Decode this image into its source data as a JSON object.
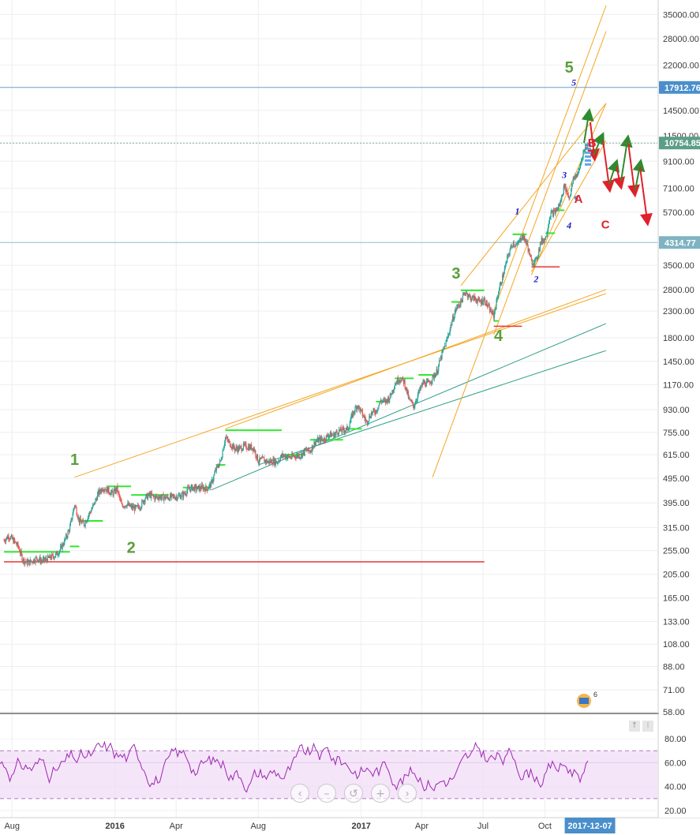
{
  "chart_data": {
    "type": "line",
    "panes": [
      {
        "name": "price",
        "scale": "log",
        "ylim": [
          58,
          38000
        ],
        "y_ticks": [
          "35000.00",
          "28000.00",
          "22000.00",
          "17912.76",
          "14500.00",
          "11500.00",
          "10754.85",
          "9100.00",
          "7100.00",
          "5700.00",
          "4314.77",
          "3500.00",
          "2800.00",
          "2300.00",
          "1800.00",
          "1450.00",
          "1170.00",
          "930.00",
          "755.00",
          "615.00",
          "495.00",
          "395.00",
          "315.00",
          "255.00",
          "205.00",
          "165.00",
          "133.00",
          "108.00",
          "88.00",
          "71.00",
          "58.00"
        ],
        "price_tags": [
          {
            "label": "17912.76",
            "value": 17912.76,
            "color": "#4a8fcb"
          },
          {
            "label": "10754.85",
            "value": 10754.85,
            "color": "#5d9e88"
          },
          {
            "label": "4314.77",
            "value": 4314.77,
            "color": "#7fb3c2"
          }
        ],
        "series": [
          {
            "values": [
              [
                "2015-07-20",
                280
              ],
              [
                "2015-07-27",
                292
              ],
              [
                "2015-08-03",
                280
              ],
              [
                "2015-08-10",
                265
              ],
              [
                "2015-08-17",
                235
              ],
              [
                "2015-08-24",
                228
              ],
              [
                "2015-08-31",
                232
              ],
              [
                "2015-09-07",
                238
              ],
              [
                "2015-09-14",
                232
              ],
              [
                "2015-09-21",
                235
              ],
              [
                "2015-09-28",
                240
              ],
              [
                "2015-10-05",
                245
              ],
              [
                "2015-10-12",
                258
              ],
              [
                "2015-10-19",
                282
              ],
              [
                "2015-10-26",
                315
              ],
              [
                "2015-11-02",
                390
              ],
              [
                "2015-11-09",
                335
              ],
              [
                "2015-11-16",
                325
              ],
              [
                "2015-11-23",
                355
              ],
              [
                "2015-11-30",
                385
              ],
              [
                "2015-12-07",
                430
              ],
              [
                "2015-12-14",
                455
              ],
              [
                "2015-12-21",
                445
              ],
              [
                "2015-12-28",
                430
              ],
              [
                "2016-01-04",
                450
              ],
              [
                "2016-01-11",
                385
              ],
              [
                "2016-01-18",
                390
              ],
              [
                "2016-01-25",
                380
              ],
              [
                "2016-02-01",
                375
              ],
              [
                "2016-02-08",
                385
              ],
              [
                "2016-02-15",
                415
              ],
              [
                "2016-02-22",
                425
              ],
              [
                "2016-02-29",
                415
              ],
              [
                "2016-03-07",
                418
              ],
              [
                "2016-03-14",
                415
              ],
              [
                "2016-03-21",
                415
              ],
              [
                "2016-03-28",
                418
              ],
              [
                "2016-04-04",
                420
              ],
              [
                "2016-04-11",
                425
              ],
              [
                "2016-04-18",
                445
              ],
              [
                "2016-04-25",
                455
              ],
              [
                "2016-05-02",
                450
              ],
              [
                "2016-05-09",
                455
              ],
              [
                "2016-05-16",
                450
              ],
              [
                "2016-05-23",
                470
              ],
              [
                "2016-05-30",
                535
              ],
              [
                "2016-06-06",
                580
              ],
              [
                "2016-06-13",
                720
              ],
              [
                "2016-06-20",
                680
              ],
              [
                "2016-06-27",
                650
              ],
              [
                "2016-07-04",
                650
              ],
              [
                "2016-07-11",
                665
              ],
              [
                "2016-07-18",
                660
              ],
              [
                "2016-07-25",
                655
              ],
              [
                "2016-08-01",
                580
              ],
              [
                "2016-08-08",
                588
              ],
              [
                "2016-08-15",
                575
              ],
              [
                "2016-08-22",
                580
              ],
              [
                "2016-08-29",
                575
              ],
              [
                "2016-09-05",
                610
              ],
              [
                "2016-09-12",
                605
              ],
              [
                "2016-09-19",
                600
              ],
              [
                "2016-09-26",
                610
              ],
              [
                "2016-10-03",
                612
              ],
              [
                "2016-10-10",
                640
              ],
              [
                "2016-10-17",
                635
              ],
              [
                "2016-10-24",
                690
              ],
              [
                "2016-10-31",
                705
              ],
              [
                "2016-11-07",
                710
              ],
              [
                "2016-11-14",
                740
              ],
              [
                "2016-11-21",
                735
              ],
              [
                "2016-11-28",
                765
              ],
              [
                "2016-12-05",
                770
              ],
              [
                "2016-12-12",
                780
              ],
              [
                "2016-12-19",
                890
              ],
              [
                "2016-12-26",
                970
              ],
              [
                "2017-01-02",
                900
              ],
              [
                "2017-01-09",
                830
              ],
              [
                "2017-01-16",
                900
              ],
              [
                "2017-01-23",
                920
              ],
              [
                "2017-01-30",
                1010
              ],
              [
                "2017-02-06",
                1000
              ],
              [
                "2017-02-13",
                1050
              ],
              [
                "2017-02-20",
                1180
              ],
              [
                "2017-02-27",
                1240
              ],
              [
                "2017-03-06",
                1200
              ],
              [
                "2017-03-13",
                1020
              ],
              [
                "2017-03-20",
                960
              ],
              [
                "2017-03-27",
                1080
              ],
              [
                "2017-04-03",
                1190
              ],
              [
                "2017-04-10",
                1180
              ],
              [
                "2017-04-17",
                1240
              ],
              [
                "2017-04-24",
                1330
              ],
              [
                "2017-05-01",
                1550
              ],
              [
                "2017-05-08",
                1750
              ],
              [
                "2017-05-15",
                2050
              ],
              [
                "2017-05-22",
                2350
              ],
              [
                "2017-05-29",
                2500
              ],
              [
                "2017-06-05",
                2750
              ],
              [
                "2017-06-12",
                2600
              ],
              [
                "2017-06-19",
                2580
              ],
              [
                "2017-06-26",
                2500
              ],
              [
                "2017-07-03",
                2550
              ],
              [
                "2017-07-10",
                2350
              ],
              [
                "2017-07-17",
                2200
              ],
              [
                "2017-07-24",
                2750
              ],
              [
                "2017-07-31",
                3200
              ],
              [
                "2017-08-07",
                3800
              ],
              [
                "2017-08-14",
                4300
              ],
              [
                "2017-08-21",
                4200
              ],
              [
                "2017-08-28",
                4600
              ],
              [
                "2017-09-04",
                4300
              ],
              [
                "2017-09-11",
                3600
              ],
              [
                "2017-09-18",
                3650
              ],
              [
                "2017-09-25",
                4350
              ],
              [
                "2017-10-02",
                4500
              ],
              [
                "2017-10-09",
                5600
              ],
              [
                "2017-10-16",
                5700
              ],
              [
                "2017-10-23",
                6100
              ],
              [
                "2017-10-30",
                7300
              ],
              [
                "2017-11-06",
                6500
              ],
              [
                "2017-11-13",
                7800
              ],
              [
                "2017-11-20",
                8200
              ],
              [
                "2017-11-27",
                9900
              ],
              [
                "2017-12-04",
                10754.85
              ]
            ]
          }
        ],
        "wave_labels": [
          {
            "text": "1",
            "color": "#5a9e3c"
          },
          {
            "text": "2",
            "color": "#5a9e3c"
          },
          {
            "text": "3",
            "color": "#5a9e3c"
          },
          {
            "text": "4",
            "color": "#5a9e3c"
          },
          {
            "text": "5",
            "color": "#5a9e3c"
          },
          {
            "text": "A",
            "color": "#e0202a"
          },
          {
            "text": "B",
            "color": "#e0202a"
          },
          {
            "text": "C",
            "color": "#e0202a"
          }
        ],
        "sub_wave_labels": [
          "1",
          "2",
          "3",
          "4",
          "5"
        ]
      },
      {
        "name": "oscillator",
        "ylim": [
          18,
          92
        ],
        "y_ticks": [
          "80.00",
          "60.00",
          "40.00",
          "20.00"
        ],
        "band": [
          30,
          70
        ],
        "mid": 60
      }
    ],
    "x_ticks": [
      {
        "label": "Aug",
        "date": "2015-08-01",
        "bold": false
      },
      {
        "label": "2016",
        "date": "2016-01-01",
        "bold": true
      },
      {
        "label": "Apr",
        "date": "2016-04-01",
        "bold": false
      },
      {
        "label": "Aug",
        "date": "2016-08-01",
        "bold": false
      },
      {
        "label": "2017",
        "date": "2017-01-01",
        "bold": true
      },
      {
        "label": "Apr",
        "date": "2017-04-01",
        "bold": false
      },
      {
        "label": "Jul",
        "date": "2017-07-01",
        "bold": false
      },
      {
        "label": "Oct",
        "date": "2017-10-01",
        "bold": false
      }
    ],
    "x_cursor": "2017-12-07",
    "grid": true
  },
  "controls": {
    "nav": [
      "‹",
      "–",
      "↺",
      "+",
      "›"
    ],
    "pane": [
      "↑",
      "⁝"
    ],
    "badge": "6"
  },
  "colors": {
    "up": "#26a69a",
    "down": "#ef5350",
    "trend": "#f5a623",
    "channel": "#2e9e88",
    "rsi": "#9c27b0",
    "green_arrow": "#2e8b2e",
    "red_arrow": "#e0202a"
  }
}
